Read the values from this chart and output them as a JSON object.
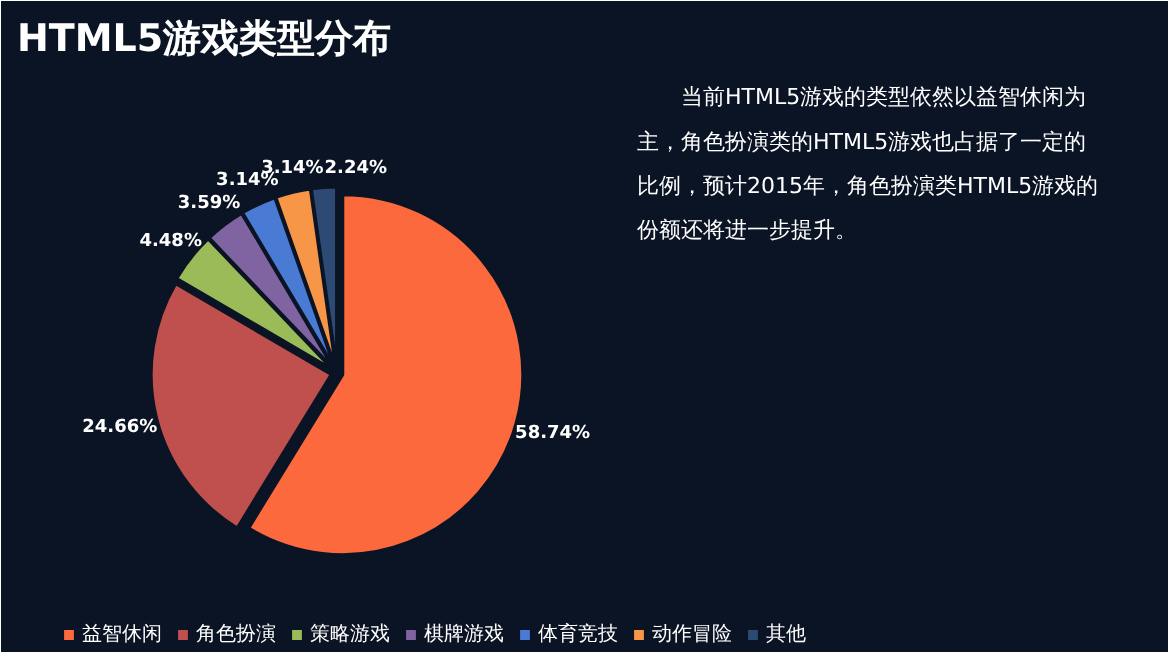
{
  "chart_data": {
    "type": "pie",
    "title": "HTML5游戏类型分布",
    "categories": [
      "益智休闲",
      "角色扮演",
      "策略游戏",
      "棋牌游戏",
      "体育竞技",
      "动作冒险",
      "其他"
    ],
    "values": [
      58.74,
      24.66,
      4.48,
      3.59,
      3.14,
      3.14,
      2.24
    ],
    "colors": [
      "#fb693d",
      "#c0504d",
      "#9bbb59",
      "#8064a2",
      "#4a7bd4",
      "#f79646",
      "#2c4a74"
    ],
    "value_labels": [
      "58.74%",
      "24.66%",
      "4.48%",
      "3.59%",
      "3.14%",
      "3.14%",
      "2.24%"
    ],
    "legend": "bottom",
    "annotations": [
      "　　当前HTML5游戏的类型依然以益智休闲为主，角色扮演类的HTML5游戏也占据了一定的比例，预计2015年，角色扮演类HTML5游戏的份额还将进一步提升。"
    ]
  }
}
